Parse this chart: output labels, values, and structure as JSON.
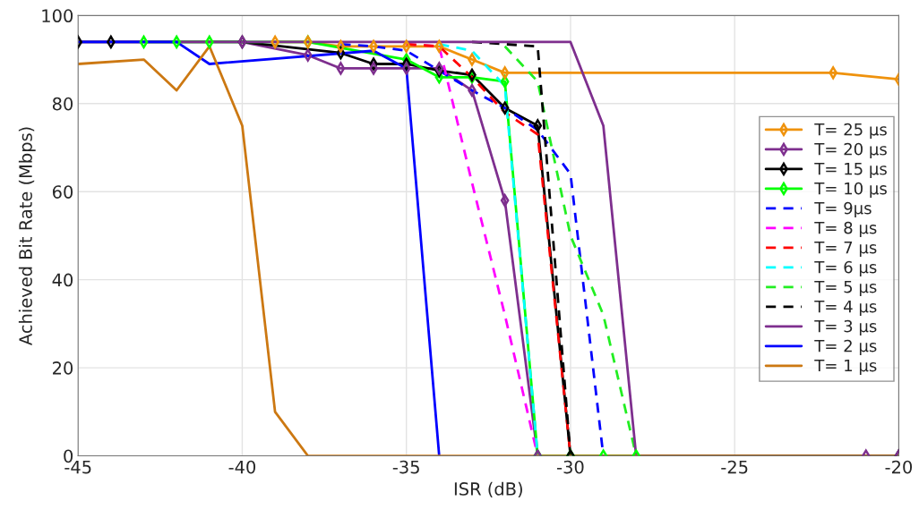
{
  "chart_data": {
    "type": "line",
    "xlabel": "ISR (dB)",
    "ylabel": "Achieved Bit Rate (Mbps)",
    "xlim": [
      -45,
      -20
    ],
    "xticks": [
      -45,
      -40,
      -35,
      -30,
      -25,
      -20
    ],
    "ylim": [
      0,
      100
    ],
    "yticks": [
      0,
      20,
      40,
      60,
      80,
      100
    ],
    "grid": true,
    "legend": "right",
    "series": [
      {
        "name": "T= 25 μs",
        "color": "#ef920c",
        "marker": "diamond",
        "line_style": "solid",
        "x": [
          -39,
          -38,
          -37,
          -36,
          -35,
          -34,
          -33,
          -32,
          -22,
          -20
        ],
        "values": [
          94,
          94,
          93,
          93,
          93,
          93,
          90,
          87,
          87,
          85.5
        ]
      },
      {
        "name": "T= 20 μs",
        "color": "#7e2f8e",
        "marker": "diamond",
        "line_style": "solid",
        "x": [
          -40,
          -38,
          -37,
          -36,
          -35,
          -34,
          -33,
          -32,
          -31,
          -21,
          -20
        ],
        "values": [
          94,
          91,
          88,
          88,
          88,
          88,
          83,
          58,
          0,
          0,
          0
        ]
      },
      {
        "name": "T= 15 μs",
        "color": "#000000",
        "marker": "diamond",
        "line_style": "solid",
        "x": [
          -45,
          -44,
          -40,
          -37,
          -36,
          -35,
          -34,
          -33,
          -32,
          -31,
          -30,
          -20
        ],
        "values": [
          94,
          94,
          94,
          91.5,
          89,
          89,
          87.5,
          86.5,
          79,
          75,
          0,
          0
        ]
      },
      {
        "name": "T= 10 μs",
        "color": "#00ff00",
        "marker": "diamond",
        "line_style": "solid",
        "x": [
          -43,
          -42,
          -41,
          -38,
          -35,
          -34,
          -33,
          -32,
          -31,
          -30,
          -29,
          -28
        ],
        "values": [
          94,
          94,
          94,
          94,
          90,
          86,
          86,
          85,
          0,
          0,
          0,
          0
        ]
      },
      {
        "name": "T= 9μs",
        "color": "#0000ff",
        "marker": "none",
        "line_style": "dashed",
        "x": [
          -37,
          -36,
          -35,
          -34,
          -33,
          -32,
          -31,
          -30,
          -29
        ],
        "values": [
          93.5,
          93,
          92,
          87.5,
          83,
          79,
          74,
          64,
          0
        ]
      },
      {
        "name": "T= 8 μs",
        "color": "#ff00ff",
        "marker": "none",
        "line_style": "dashed",
        "x": [
          -35,
          -34,
          -33,
          -32,
          -31
        ],
        "values": [
          93.5,
          93,
          62,
          32,
          0
        ]
      },
      {
        "name": "T= 7 μs",
        "color": "#ff0000",
        "marker": "none",
        "line_style": "dashed",
        "x": [
          -35,
          -34,
          -33,
          -32,
          -31,
          -30
        ],
        "values": [
          93.5,
          93,
          86,
          78,
          73,
          0
        ]
      },
      {
        "name": "T= 6 μs",
        "color": "#00ffff",
        "marker": "none",
        "line_style": "dashed",
        "x": [
          -34,
          -33,
          -32,
          -31
        ],
        "values": [
          93.5,
          92,
          84,
          0
        ]
      },
      {
        "name": "T= 5 μs",
        "color": "#22ee22",
        "marker": "none",
        "line_style": "dashed",
        "x": [
          -32,
          -31,
          -30,
          -29,
          -28
        ],
        "values": [
          93,
          85,
          50,
          32,
          0
        ]
      },
      {
        "name": "T= 4 μs",
        "color": "#000000",
        "marker": "none",
        "line_style": "dashed",
        "x": [
          -33,
          -32,
          -31,
          -30
        ],
        "values": [
          94,
          93.5,
          93,
          0
        ]
      },
      {
        "name": "T= 3 μs",
        "color": "#7e2f8e",
        "marker": "none",
        "line_style": "solid",
        "x": [
          -45,
          -30,
          -29,
          -28
        ],
        "values": [
          94,
          94,
          75,
          0
        ]
      },
      {
        "name": "T= 2 μs",
        "color": "#0000ff",
        "marker": "none",
        "line_style": "solid",
        "x": [
          -45,
          -42,
          -41,
          -36,
          -35,
          -34
        ],
        "values": [
          94,
          94,
          89,
          92,
          88,
          0
        ]
      },
      {
        "name": "T= 1 μs",
        "color": "#cc7812",
        "marker": "none",
        "line_style": "solid",
        "x": [
          -45,
          -43,
          -42,
          -41,
          -40,
          -39,
          -38,
          -20
        ],
        "values": [
          89,
          90,
          83,
          93,
          75,
          10,
          0,
          0
        ]
      }
    ]
  }
}
